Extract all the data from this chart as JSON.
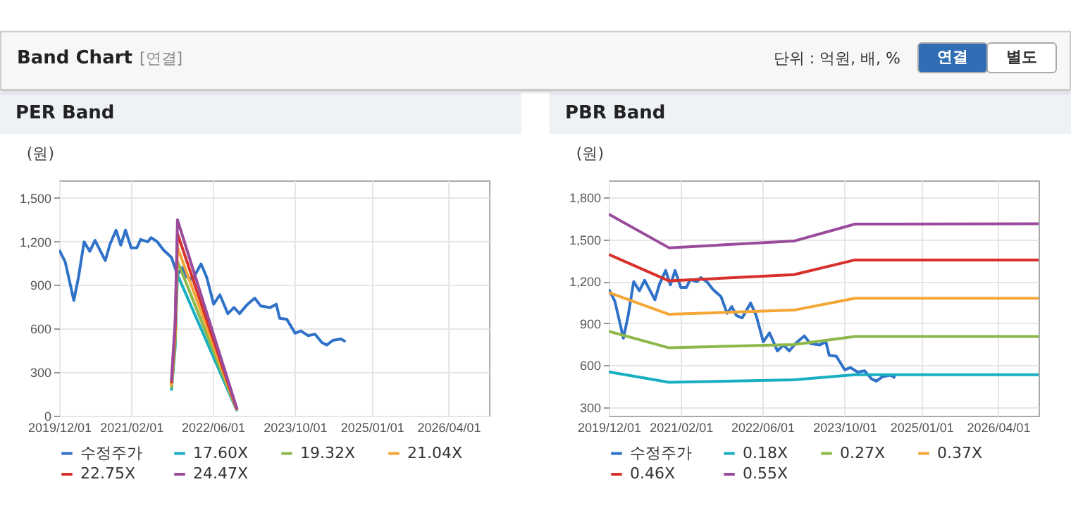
{
  "chart_data": [
    {
      "type": "other",
      "title": "Band Chart",
      "annotations": [
        "[연결]",
        "단위 : 억원, 배, %",
        "연결",
        "별도"
      ]
    },
    {
      "type": "line",
      "title": "PER Band",
      "ylabel": "(원)",
      "grid": true,
      "legend": "bottom",
      "marker": "none",
      "line_style": "solid",
      "xlim": [
        "2019-12-01",
        "2026-11-28"
      ],
      "ylim": [
        0,
        1620
      ],
      "yticks": [
        0,
        300,
        600,
        900,
        {
          "value": 1200,
          "label": "1,200"
        },
        {
          "value": 1500,
          "label": "1,500"
        }
      ],
      "xticks": [
        {
          "value": "2019-12-01",
          "label": "2019/12/01"
        },
        {
          "value": "2021-02-01",
          "label": "2021/02/01"
        },
        {
          "value": "2022-06-01",
          "label": "2022/06/01"
        },
        {
          "value": "2023-10-01",
          "label": "2023/10/01"
        },
        {
          "value": "2025-01-01",
          "label": "2025/01/01"
        },
        {
          "value": "2026-04-01",
          "label": "2026/04/01"
        }
      ],
      "series": [
        {
          "name": "수정주가",
          "color": "#2f72c8",
          "x": [
            "2019-12-01",
            "2020-01-06",
            "2020-02-26",
            "2020-03-25",
            "2020-04-27",
            "2020-05-31",
            "2020-07-01",
            "2020-08-31",
            "2020-09-28",
            "2020-11-03",
            "2020-12-01",
            "2020-12-29",
            "2021-02-01",
            "2021-03-06",
            "2021-03-29",
            "2021-05-10",
            "2021-05-30",
            "2021-07-06",
            "2021-08-11",
            "2021-09-28",
            "2021-11-03",
            "2021-12-01",
            "2021-12-29",
            "2022-02-01",
            "2022-03-23",
            "2022-04-25",
            "2022-06-06",
            "2022-07-13",
            "2022-08-29",
            "2022-10-05",
            "2022-11-07",
            "2022-12-19",
            "2023-02-05",
            "2023-03-13",
            "2023-05-08",
            "2023-06-13",
            "2023-07-03",
            "2023-08-14",
            "2023-10-03",
            "2023-11-06",
            "2023-12-18",
            "2024-01-29",
            "2024-03-11",
            "2024-04-08",
            "2024-05-14",
            "2024-07-01",
            "2024-07-29"
          ],
          "values": [
            1142,
            1058,
            794,
            955,
            1197,
            1132,
            1207,
            1068,
            1181,
            1277,
            1174,
            1277,
            1155,
            1155,
            1213,
            1197,
            1226,
            1197,
            1142,
            1090,
            971,
            1019,
            955,
            939,
            1045,
            955,
            768,
            832,
            703,
            745,
            703,
            761,
            810,
            755,
            745,
            768,
            671,
            665,
            568,
            584,
            552,
            561,
            503,
            487,
            519,
            529,
            510
          ]
        },
        {
          "name": "17.60X",
          "color": "#19afc2",
          "x": [
            "2021-09-28",
            "2021-10-20",
            "2021-11-03",
            "2022-10-23"
          ],
          "values": [
            173,
            466,
            970,
            32
          ]
        },
        {
          "name": "19.32X",
          "color": "#8cb84a",
          "x": [
            "2021-09-28",
            "2021-10-20",
            "2021-11-03",
            "2022-10-23"
          ],
          "values": [
            189,
            512,
            1064,
            36
          ]
        },
        {
          "name": "21.04X",
          "color": "#f4a636",
          "x": [
            "2021-09-28",
            "2021-10-20",
            "2021-11-03",
            "2022-10-23"
          ],
          "values": [
            206,
            557,
            1159,
            39
          ]
        },
        {
          "name": "22.75X",
          "color": "#d8312c",
          "x": [
            "2021-09-28",
            "2021-10-20",
            "2021-11-03",
            "2022-10-23"
          ],
          "values": [
            223,
            603,
            1253,
            42
          ]
        },
        {
          "name": "24.47X",
          "color": "#9b4b9c",
          "x": [
            "2021-09-28",
            "2021-10-20",
            "2021-11-03",
            "2022-10-23"
          ],
          "values": [
            240,
            648,
            1348,
            45
          ]
        }
      ]
    },
    {
      "type": "line",
      "title": "PBR Band",
      "ylabel": "(원)",
      "grid": true,
      "legend": "bottom",
      "marker": "none",
      "line_style": "solid",
      "xlim": [
        "2019-12-01",
        "2026-11-28"
      ],
      "ylim": [
        240,
        1920
      ],
      "yticks": [
        300,
        600,
        900,
        {
          "value": 1200,
          "label": "1,200"
        },
        {
          "value": 1500,
          "label": "1,500"
        },
        {
          "value": 1800,
          "label": "1,800"
        }
      ],
      "xticks": [
        {
          "value": "2019-12-01",
          "label": "2019/12/01"
        },
        {
          "value": "2021-02-01",
          "label": "2021/02/01"
        },
        {
          "value": "2022-06-01",
          "label": "2022/06/01"
        },
        {
          "value": "2023-10-01",
          "label": "2023/10/01"
        },
        {
          "value": "2025-01-01",
          "label": "2025/01/01"
        },
        {
          "value": "2026-04-01",
          "label": "2026/04/01"
        }
      ],
      "series": [
        {
          "name": "수정주가",
          "color": "#2f72c8",
          "x": [
            "2019-12-01",
            "2020-01-06",
            "2020-02-26",
            "2020-03-25",
            "2020-04-27",
            "2020-05-31",
            "2020-07-01",
            "2020-08-31",
            "2020-09-28",
            "2020-11-03",
            "2020-12-01",
            "2020-12-29",
            "2021-02-01",
            "2021-03-06",
            "2021-03-29",
            "2021-05-10",
            "2021-05-30",
            "2021-07-06",
            "2021-08-11",
            "2021-09-28",
            "2021-11-03",
            "2021-12-01",
            "2021-12-29",
            "2022-02-01",
            "2022-03-23",
            "2022-04-25",
            "2022-06-06",
            "2022-07-13",
            "2022-08-29",
            "2022-10-05",
            "2022-11-07",
            "2022-12-19",
            "2023-02-05",
            "2023-03-13",
            "2023-05-08",
            "2023-06-13",
            "2023-07-03",
            "2023-08-14",
            "2023-10-03",
            "2023-11-06",
            "2023-12-18",
            "2024-01-29",
            "2024-03-11",
            "2024-04-08",
            "2024-05-14",
            "2024-07-01",
            "2024-07-29"
          ],
          "values": [
            1142,
            1058,
            794,
            955,
            1197,
            1132,
            1207,
            1068,
            1181,
            1277,
            1174,
            1277,
            1155,
            1155,
            1213,
            1197,
            1226,
            1197,
            1142,
            1090,
            971,
            1019,
            955,
            939,
            1045,
            955,
            768,
            832,
            703,
            745,
            703,
            761,
            810,
            755,
            745,
            768,
            671,
            665,
            568,
            584,
            552,
            561,
            503,
            487,
            519,
            529,
            510
          ]
        },
        {
          "name": "0.18X",
          "color": "#19afc2",
          "x": [
            "2019-12-01",
            "2020-11-23",
            "2022-12-05",
            "2023-12-03",
            "2026-11-28"
          ],
          "values": [
            553,
            479,
            496,
            533,
            533
          ]
        },
        {
          "name": "0.27X",
          "color": "#8cb84a",
          "x": [
            "2019-12-01",
            "2020-11-23",
            "2022-12-05",
            "2023-12-03",
            "2026-11-28"
          ],
          "values": [
            843,
            725,
            748,
            806,
            806
          ]
        },
        {
          "name": "0.37X",
          "color": "#f4a636",
          "x": [
            "2019-12-01",
            "2020-11-23",
            "2022-12-05",
            "2023-12-03",
            "2026-11-28"
          ],
          "values": [
            1119,
            964,
            994,
            1079,
            1079
          ]
        },
        {
          "name": "0.46X",
          "color": "#d8312c",
          "x": [
            "2019-12-01",
            "2020-11-23",
            "2022-12-05",
            "2023-12-03",
            "2026-11-28"
          ],
          "values": [
            1392,
            1203,
            1247,
            1352,
            1352
          ]
        },
        {
          "name": "0.55X",
          "color": "#9b4b9c",
          "x": [
            "2019-12-01",
            "2020-11-23",
            "2022-12-05",
            "2023-12-03",
            "2026-11-28"
          ],
          "values": [
            1679,
            1439,
            1487,
            1608,
            1611
          ]
        }
      ]
    }
  ]
}
